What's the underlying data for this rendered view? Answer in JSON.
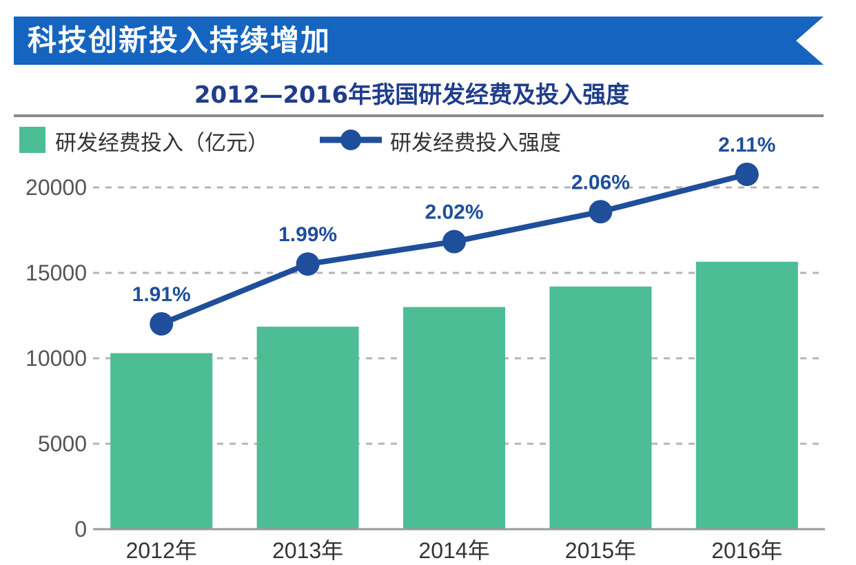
{
  "banner": {
    "title": "科技创新投入持续增加"
  },
  "colors": {
    "banner": "#1565c0",
    "bar": "#4cbd94",
    "line": "#1f4e9a",
    "title_text": "#1f3d8a"
  },
  "chart_data": {
    "type": "bar",
    "title": "2012—2016年我国研发经费及投入强度",
    "categories": [
      "2012年",
      "2013年",
      "2014年",
      "2015年",
      "2016年"
    ],
    "series": [
      {
        "name": "研发经费投入（亿元）",
        "type": "bar",
        "values": [
          10300,
          11850,
          13000,
          14200,
          15650
        ]
      },
      {
        "name": "研发经费投入强度",
        "type": "line",
        "values": [
          1.91,
          1.99,
          2.02,
          2.06,
          2.11
        ],
        "labels": [
          "1.91%",
          "1.99%",
          "2.02%",
          "2.06%",
          "2.11%"
        ]
      }
    ],
    "yticks": [
      "0",
      "5000",
      "10000",
      "15000",
      "20000"
    ],
    "ylim": [
      0,
      20000
    ],
    "grid": true,
    "legend_position": "top-left"
  }
}
